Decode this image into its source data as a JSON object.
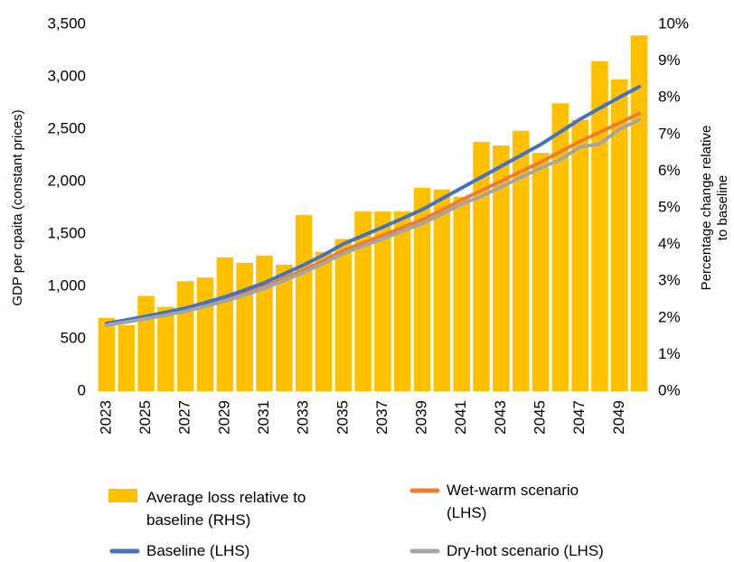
{
  "chart_data": {
    "type": "bar",
    "ylabel": "GDP per cpaita (constant prices)",
    "y2label": [
      "Percentage change relative",
      "to baseline"
    ],
    "categories": [
      2023,
      null,
      2025,
      null,
      2027,
      null,
      2029,
      null,
      2031,
      null,
      2033,
      null,
      2035,
      null,
      2037,
      null,
      2039,
      null,
      2041,
      null,
      2043,
      null,
      2045,
      null,
      2047,
      null,
      2049,
      null
    ],
    "ylim": [
      0,
      3500
    ],
    "yticks": [
      0,
      500,
      {
        "value": 1000,
        "label": "1,000"
      },
      {
        "value": 1500,
        "label": "1,500"
      },
      {
        "value": 2000,
        "label": "2,000"
      },
      {
        "value": 2500,
        "label": "2,500"
      },
      {
        "value": 3000,
        "label": "3,000"
      },
      {
        "value": 3500,
        "label": "3,500"
      }
    ],
    "y2lim": [
      0,
      10
    ],
    "y2ticks": [
      {
        "value": 0,
        "label": "0%"
      },
      {
        "value": 1,
        "label": "1%"
      },
      {
        "value": 2,
        "label": "2%"
      },
      {
        "value": 3,
        "label": "3%"
      },
      {
        "value": 4,
        "label": "4%"
      },
      {
        "value": 5,
        "label": "5%"
      },
      {
        "value": 6,
        "label": "6%"
      },
      {
        "value": 7,
        "label": "7%"
      },
      {
        "value": 8,
        "label": "8%"
      },
      {
        "value": 9,
        "label": "9%"
      },
      {
        "value": 10,
        "label": "10%"
      }
    ],
    "series": [
      {
        "name": "Average loss relative to baseline (RHS)",
        "type": "bar",
        "axis": "y2",
        "color": "#ffc000",
        "values": [
          2.0,
          1.8,
          2.6,
          2.3,
          3.0,
          3.1,
          3.65,
          3.5,
          3.7,
          3.45,
          4.8,
          3.8,
          4.15,
          4.9,
          4.9,
          4.9,
          5.55,
          5.5,
          5.3,
          6.8,
          6.7,
          7.1,
          6.5,
          7.85,
          7.4,
          9.0,
          8.5,
          9.7
        ]
      },
      {
        "name": "Wet-warm scenario (LHS)",
        "type": "line",
        "color": "#ed7d31",
        "values": [
          635,
          668,
          700,
          736,
          773,
          822,
          873,
          933,
          1000,
          1078,
          1158,
          1245,
          1342,
          1415,
          1488,
          1562,
          1638,
          1730,
          1826,
          1915,
          2005,
          2095,
          2185,
          2285,
          2385,
          2470,
          2560,
          2650
        ]
      },
      {
        "name": "Baseline (LHS)",
        "type": "line",
        "color": "#4472c4",
        "values": [
          647,
          680,
          715,
          752,
          793,
          845,
          900,
          965,
          1035,
          1120,
          1205,
          1300,
          1405,
          1485,
          1565,
          1648,
          1733,
          1836,
          1940,
          2043,
          2146,
          2250,
          2353,
          2474,
          2595,
          2700,
          2805,
          2905
        ]
      },
      {
        "name": "Dry-hot scenario (LHS)",
        "type": "line",
        "color": "#a5a5a5",
        "values": [
          630,
          660,
          692,
          726,
          762,
          810,
          860,
          918,
          982,
          1058,
          1135,
          1220,
          1315,
          1385,
          1455,
          1528,
          1600,
          1690,
          1785,
          1860,
          1950,
          2040,
          2130,
          2210,
          2330,
          2360,
          2500,
          2590
        ]
      }
    ],
    "legend": "bottom"
  }
}
